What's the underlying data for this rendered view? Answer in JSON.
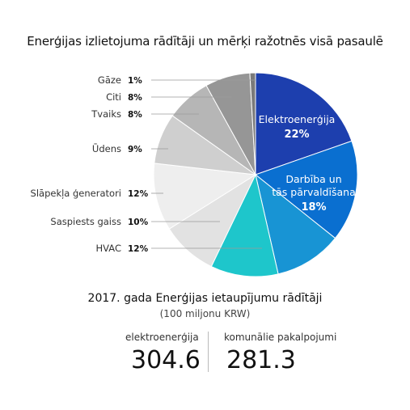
{
  "title": "Enerģijas izlietojuma rādītāji un mērķi ražotnēs visā pasaulē",
  "chart_data": {
    "type": "pie",
    "title": "Enerģijas izlietojuma rādītāji un mērķi ražotnēs visā pasaulē",
    "slices": [
      {
        "label": "Elektroenerģija",
        "value": 22,
        "display": "22%",
        "color": "#1d3fae",
        "inside": true
      },
      {
        "label": "Darbība un tās pārvaldīšana",
        "label_lines": [
          "Darbība un",
          "tās pārvaldīšana"
        ],
        "value": 18,
        "display": "18%",
        "color": "#0a6fd0",
        "inside": true
      },
      {
        "label": "",
        "value": 12,
        "display": "",
        "color": "#1894d4",
        "inside": false
      },
      {
        "label": "HVAC",
        "value": 12,
        "display": "12%",
        "color": "#1ec6cb",
        "inside": false
      },
      {
        "label": "Saspiests gaiss",
        "value": 10,
        "display": "10%",
        "color": "#e2e2e2",
        "inside": false
      },
      {
        "label": "Slāpekļa ģeneratori",
        "value": 12,
        "display": "12%",
        "color": "#eeeeee",
        "inside": false
      },
      {
        "label": "Ūdens",
        "value": 9,
        "display": "9%",
        "color": "#cfcfcf",
        "inside": false
      },
      {
        "label": "Tvaiks",
        "value": 8,
        "display": "8%",
        "color": "#b6b6b6",
        "inside": false
      },
      {
        "label": "Citi",
        "value": 8,
        "display": "8%",
        "color": "#969696",
        "inside": false
      },
      {
        "label": "Gāze",
        "value": 1,
        "display": "1%",
        "color": "#7a7a7a",
        "inside": false
      }
    ]
  },
  "savings": {
    "title": "2017. gada Enerģijas ietaupījumu rādītāji",
    "unit": "(100 miljonu KRW)",
    "items": [
      {
        "label": "elektroenerģija",
        "value": "304.6"
      },
      {
        "label": "komunālie pakalpojumi",
        "value": "281.3"
      }
    ]
  }
}
